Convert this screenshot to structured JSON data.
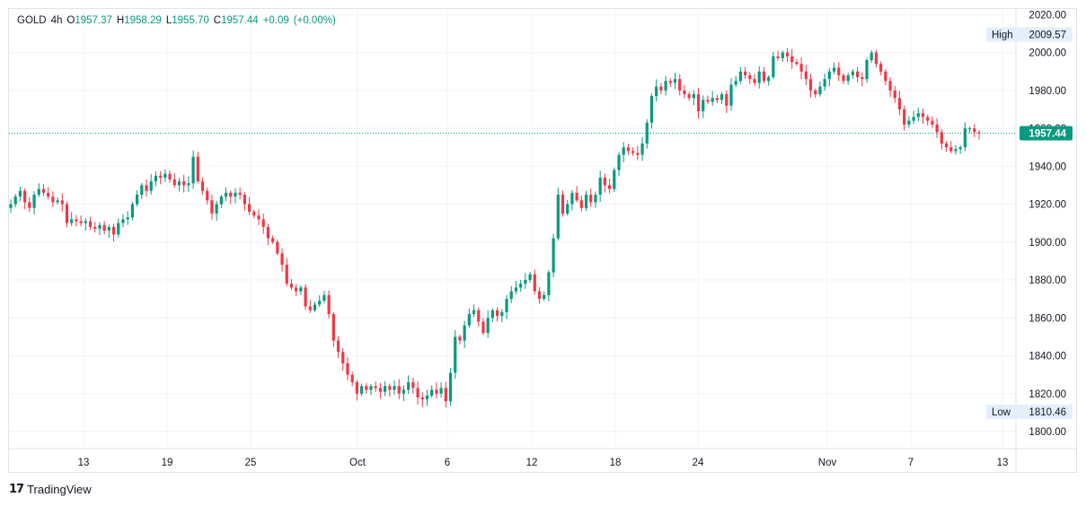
{
  "legend": {
    "symbol": "GOLD",
    "timeframe": "4h",
    "open_label": "O",
    "open": "1957.37",
    "high_label": "H",
    "high": "1958.29",
    "low_label": "L",
    "low": "1955.70",
    "close_label": "C",
    "close": "1957.44",
    "change": "+0.09",
    "change_pct": "(+0.00%)"
  },
  "branding": {
    "logo_mark": "17",
    "logo_text": "TradingView"
  },
  "colors": {
    "up": "#089981",
    "down": "#f23645",
    "grid": "#f0f3fa",
    "axis_text": "#131722",
    "price_line": "#089981",
    "label_bg": "#e3effd"
  },
  "chart_data": {
    "type": "candlestick",
    "instrument": "GOLD",
    "interval": "4h",
    "y_axis": {
      "range": [
        1791,
        2023
      ],
      "ticks": [
        "1800.00",
        "1820.00",
        "1840.00",
        "1860.00",
        "1880.00",
        "1900.00",
        "1920.00",
        "1940.00",
        "1960.00",
        "1980.00",
        "2000.00",
        "2020.00"
      ]
    },
    "x_axis": {
      "tick_labels": [
        "13",
        "19",
        "25",
        "Oct",
        "6",
        "12",
        "18",
        "24",
        "Nov",
        "7",
        "13"
      ]
    },
    "last_price": {
      "value": 1957.44,
      "label": "1957.44"
    },
    "high_marker": {
      "label": "High",
      "value": "2009.57"
    },
    "low_marker": {
      "label": "Low",
      "value": "1810.46"
    },
    "grid": true,
    "close_path": [
      1920,
      1924,
      1927,
      1921,
      1918,
      1925,
      1928,
      1926,
      1924,
      1921,
      1922,
      1920,
      1910,
      1912,
      1911,
      1910,
      1911,
      1908,
      1907,
      1909,
      1906,
      1908,
      1904,
      1910,
      1912,
      1913,
      1920,
      1925,
      1930,
      1927,
      1932,
      1935,
      1934,
      1936,
      1933,
      1930,
      1932,
      1930,
      1931,
      1945,
      1932,
      1927,
      1922,
      1915,
      1920,
      1924,
      1926,
      1924,
      1926,
      1925,
      1920,
      1916,
      1914,
      1912,
      1908,
      1902,
      1900,
      1894,
      1888,
      1878,
      1876,
      1874,
      1876,
      1866,
      1864,
      1867,
      1869,
      1872,
      1862,
      1848,
      1842,
      1836,
      1830,
      1826,
      1820,
      1824,
      1822,
      1824,
      1823,
      1821,
      1824,
      1822,
      1824,
      1820,
      1822,
      1826,
      1823,
      1818,
      1817,
      1819,
      1822,
      1820,
      1823,
      1816,
      1831,
      1850,
      1848,
      1856,
      1862,
      1864,
      1858,
      1852,
      1860,
      1864,
      1861,
      1863,
      1870,
      1874,
      1876,
      1878,
      1880,
      1883,
      1874,
      1870,
      1872,
      1884,
      1902,
      1925,
      1915,
      1920,
      1926,
      1922,
      1918,
      1925,
      1921,
      1925,
      1934,
      1930,
      1928,
      1938,
      1946,
      1950,
      1948,
      1947,
      1946,
      1952,
      1963,
      1977,
      1982,
      1980,
      1985,
      1984,
      1986,
      1980,
      1978,
      1976,
      1978,
      1969,
      1975,
      1974,
      1976,
      1975,
      1978,
      1972,
      1983,
      1985,
      1990,
      1988,
      1986,
      1984,
      1990,
      1985,
      1987,
      1998,
      1997,
      2000,
      1998,
      1995,
      1994,
      1990,
      1986,
      1980,
      1978,
      1982,
      1986,
      1990,
      1992,
      1988,
      1985,
      1988,
      1990,
      1987,
      1986,
      1996,
      2000,
      1994,
      1990,
      1985,
      1980,
      1976,
      1970,
      1962,
      1964,
      1966,
      1968,
      1966,
      1964,
      1962,
      1958,
      1952,
      1950,
      1948,
      1949,
      1950,
      1960,
      1960,
      1958,
      1957.44
    ],
    "price_extremes_text_note": ""
  }
}
